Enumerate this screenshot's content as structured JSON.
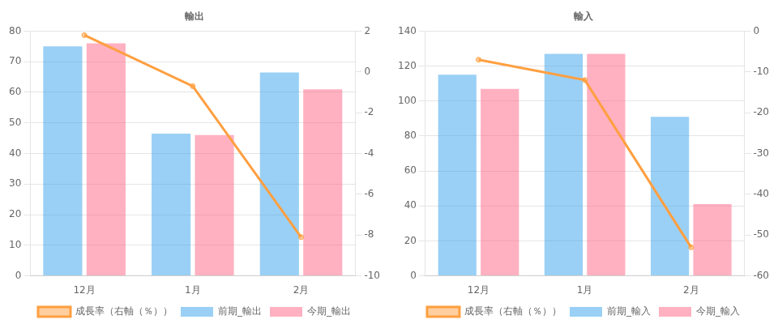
{
  "chart_data": [
    {
      "type": "bar",
      "title": "輸出",
      "categories": [
        "12月",
        "1月",
        "2月"
      ],
      "series": [
        {
          "name": "前期_輸出",
          "values": [
            75.0,
            46.5,
            66.5
          ]
        },
        {
          "name": "今期_輸出",
          "values": [
            76.0,
            46.0,
            61.0
          ]
        },
        {
          "name": "成長率（右軸（％））",
          "type": "line",
          "axis": "y2",
          "values": [
            1.8,
            -0.7,
            -8.1
          ]
        }
      ],
      "ylim": [
        0,
        80
      ],
      "yticks": [
        0,
        10,
        20,
        30,
        40,
        50,
        60,
        70,
        80
      ],
      "y2lim": [
        -10,
        2
      ],
      "y2ticks": [
        -10,
        -8,
        -6,
        -4,
        -2,
        0,
        2
      ],
      "grid": true,
      "legend": "bottom"
    },
    {
      "type": "bar",
      "title": "輸入",
      "categories": [
        "12月",
        "1月",
        "2月"
      ],
      "series": [
        {
          "name": "前期_輸入",
          "values": [
            115.0,
            127.0,
            91.0
          ]
        },
        {
          "name": "今期_輸入",
          "values": [
            107.0,
            127.0,
            41.0
          ]
        },
        {
          "name": "成長率（右軸（％））",
          "type": "line",
          "axis": "y2",
          "values": [
            -7.0,
            -12.0,
            -53.0
          ]
        }
      ],
      "ylim": [
        0,
        140
      ],
      "yticks": [
        0,
        20,
        40,
        60,
        80,
        100,
        120,
        140
      ],
      "y2lim": [
        -60,
        0
      ],
      "y2ticks": [
        -60,
        -50,
        -40,
        -30,
        -20,
        -10,
        0
      ],
      "grid": true,
      "legend": "bottom"
    }
  ]
}
